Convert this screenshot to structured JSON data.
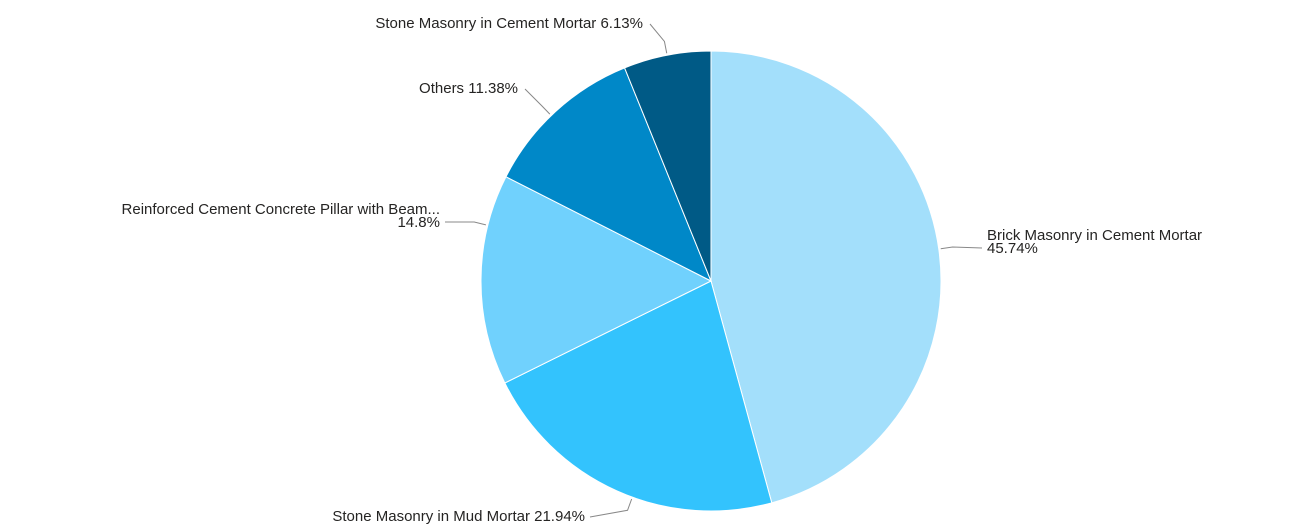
{
  "chart_data": {
    "type": "pie",
    "categories": [
      "Brick Masonry in Cement Mortar",
      "Stone Masonry in Mud Mortar",
      "Reinforced Cement Concrete Pillar with Beam...",
      "Others",
      "Stone Masonry in Cement Mortar"
    ],
    "values": [
      45.74,
      21.94,
      14.8,
      11.38,
      6.13
    ],
    "value_labels": [
      "45.74%",
      "21.94%",
      "14.8%",
      "11.38%",
      "6.13%"
    ],
    "colors": [
      "#a3dffb",
      "#33c3fd",
      "#70d1fd",
      "#0088c8",
      "#005a86"
    ]
  }
}
